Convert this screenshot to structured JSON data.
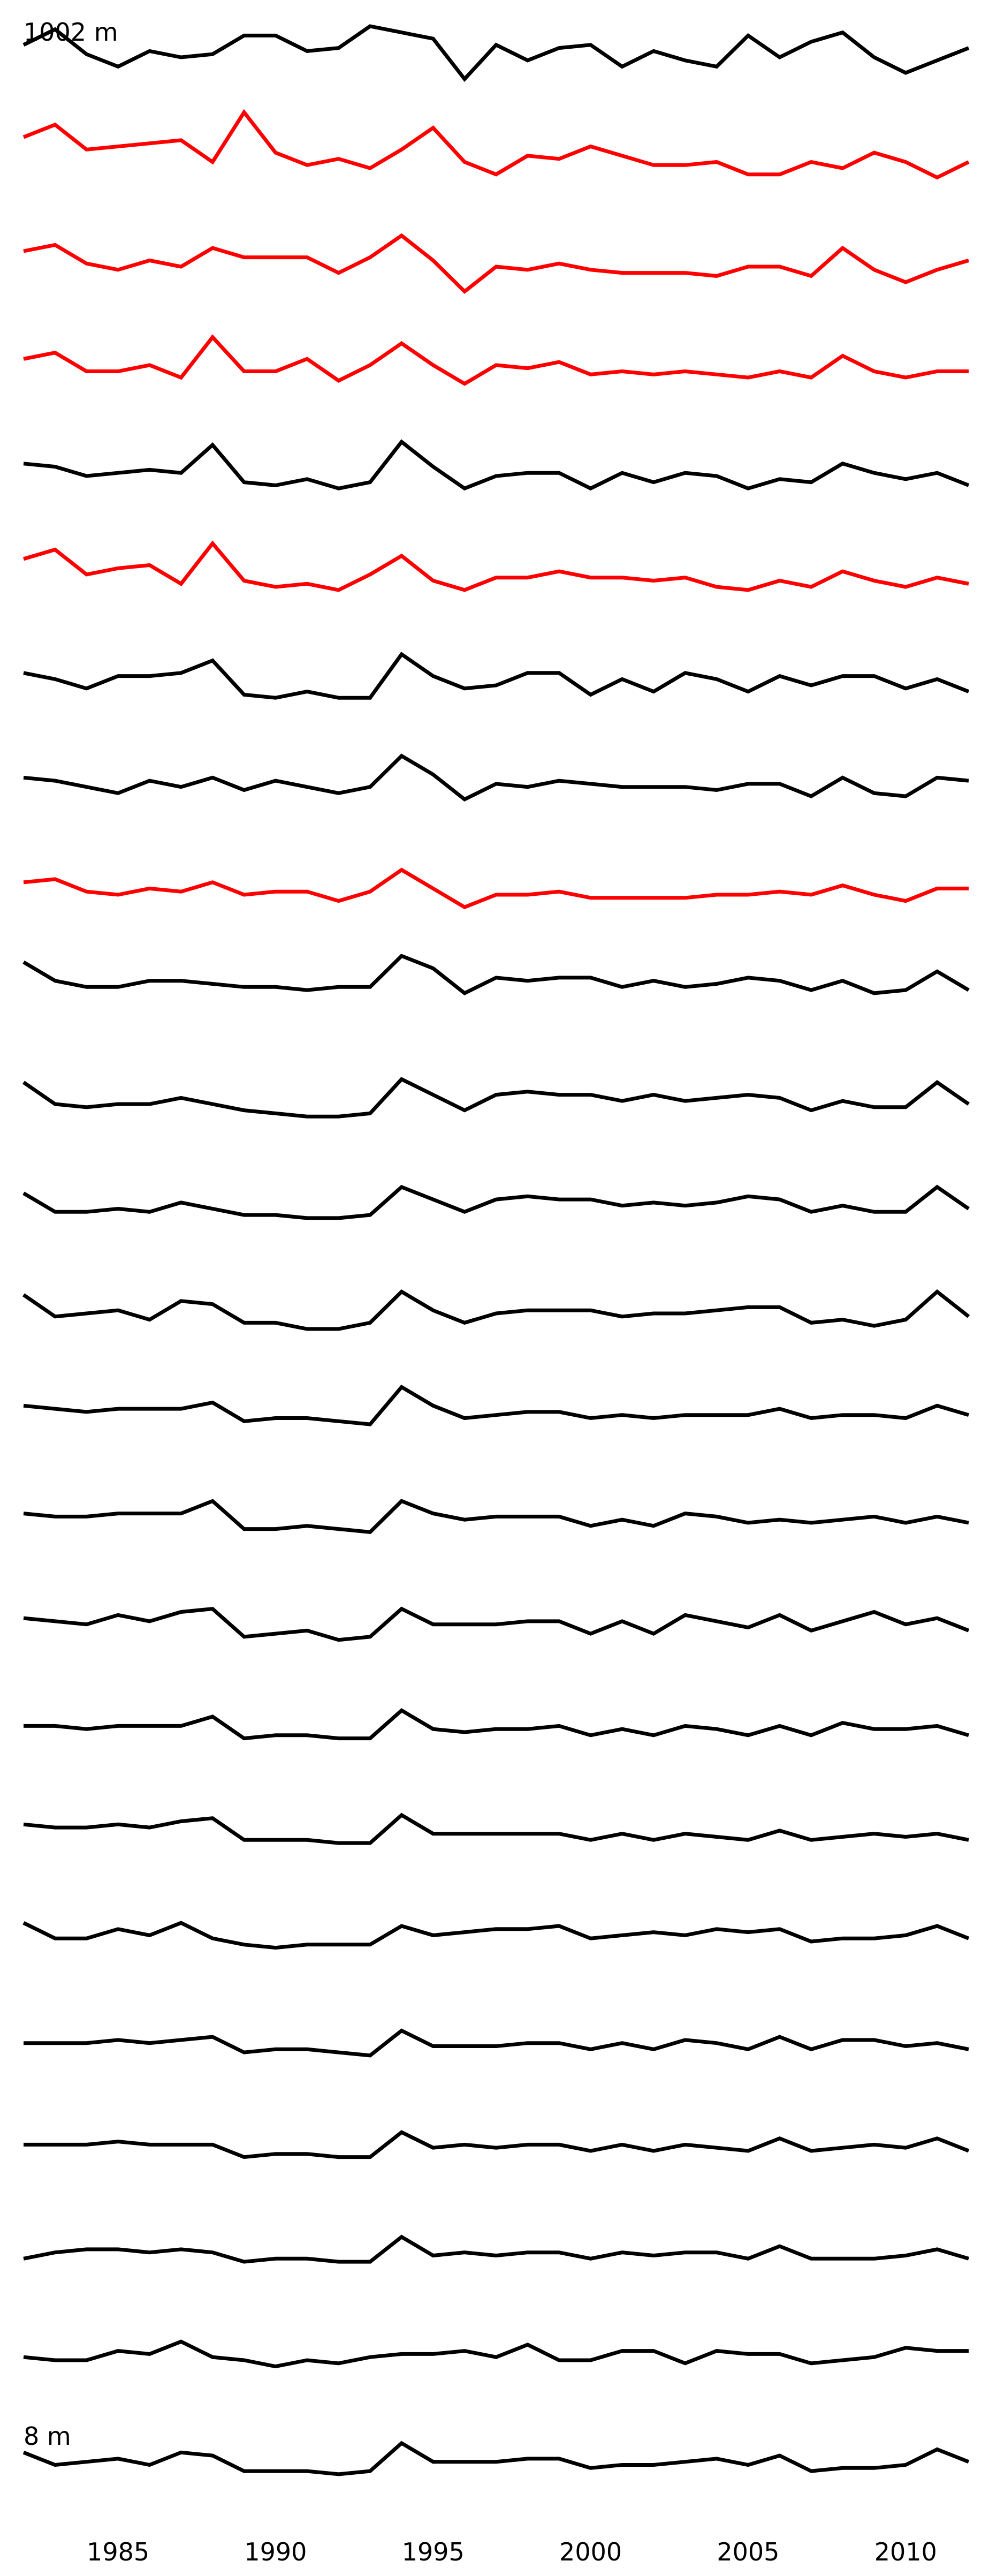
{
  "chart_data": {
    "type": "line",
    "layout": "stacked-small-multiples",
    "grid": false,
    "x_axis_visible": true,
    "y_axes_visible": false,
    "x_ticks": [
      1985,
      1990,
      1995,
      2000,
      2005,
      2010
    ],
    "x_tick_labels": [
      "1985",
      "1990",
      "1995",
      "2000",
      "2005",
      "2010"
    ],
    "xlim": [
      1982,
      2012
    ],
    "top_label": "1002 m",
    "bottom_label": "8 m",
    "colors": {
      "highlight": "#ff0000",
      "default": "#000000"
    },
    "x": [
      1982,
      1983,
      1984,
      1985,
      1986,
      1987,
      1988,
      1989,
      1990,
      1991,
      1992,
      1993,
      1994,
      1995,
      1996,
      1997,
      1998,
      1999,
      2000,
      2001,
      2002,
      2003,
      2004,
      2005,
      2006,
      2007,
      2008,
      2009,
      2010,
      2011,
      2012
    ],
    "series": [
      {
        "color": "black",
        "values": [
          0.9,
          1.4,
          0.6,
          0.2,
          0.7,
          0.5,
          0.6,
          1.2,
          1.2,
          0.7,
          0.8,
          1.5,
          1.3,
          1.1,
          -0.2,
          0.9,
          0.4,
          0.8,
          0.9,
          0.2,
          0.7,
          0.4,
          0.2,
          1.2,
          0.5,
          1.0,
          1.3,
          0.5,
          0.0,
          0.4,
          0.8
        ]
      },
      {
        "color": "red",
        "values": [
          1.3,
          1.7,
          0.9,
          1.0,
          1.1,
          1.2,
          0.5,
          2.1,
          0.8,
          0.4,
          0.6,
          0.3,
          0.9,
          1.6,
          0.5,
          0.1,
          0.7,
          0.6,
          1.0,
          0.7,
          0.4,
          0.4,
          0.5,
          0.1,
          0.1,
          0.5,
          0.3,
          0.8,
          0.5,
          0.0,
          0.5
        ]
      },
      {
        "color": "red",
        "values": [
          1.0,
          1.2,
          0.6,
          0.4,
          0.7,
          0.5,
          1.1,
          0.8,
          0.8,
          0.8,
          0.3,
          0.8,
          1.5,
          0.7,
          -0.3,
          0.5,
          0.4,
          0.6,
          0.4,
          0.3,
          0.3,
          0.3,
          0.2,
          0.5,
          0.5,
          0.2,
          1.1,
          0.4,
          0.0,
          0.4,
          0.7
        ]
      },
      {
        "color": "red",
        "values": [
          0.9,
          1.1,
          0.5,
          0.5,
          0.7,
          0.3,
          1.6,
          0.5,
          0.5,
          0.9,
          0.2,
          0.7,
          1.4,
          0.7,
          0.1,
          0.7,
          0.6,
          0.8,
          0.4,
          0.5,
          0.4,
          0.5,
          0.4,
          0.3,
          0.5,
          0.3,
          1.0,
          0.5,
          0.3,
          0.5,
          0.5
        ]
      },
      {
        "color": "black",
        "values": [
          0.9,
          0.8,
          0.5,
          0.6,
          0.7,
          0.6,
          1.5,
          0.3,
          0.2,
          0.4,
          0.1,
          0.3,
          1.6,
          0.8,
          0.1,
          0.5,
          0.6,
          0.6,
          0.1,
          0.6,
          0.3,
          0.6,
          0.5,
          0.1,
          0.4,
          0.3,
          0.9,
          0.6,
          0.4,
          0.6,
          0.2
        ]
      },
      {
        "color": "red",
        "values": [
          1.2,
          1.5,
          0.7,
          0.9,
          1.0,
          0.4,
          1.7,
          0.5,
          0.3,
          0.4,
          0.2,
          0.7,
          1.3,
          0.5,
          0.2,
          0.6,
          0.6,
          0.8,
          0.6,
          0.6,
          0.5,
          0.6,
          0.3,
          0.2,
          0.5,
          0.3,
          0.8,
          0.5,
          0.3,
          0.6,
          0.4
        ]
      },
      {
        "color": "black",
        "values": [
          0.9,
          0.7,
          0.4,
          0.8,
          0.8,
          0.9,
          1.3,
          0.2,
          0.1,
          0.3,
          0.1,
          0.1,
          1.5,
          0.8,
          0.4,
          0.5,
          0.9,
          0.9,
          0.2,
          0.7,
          0.3,
          0.9,
          0.7,
          0.3,
          0.8,
          0.5,
          0.8,
          0.8,
          0.4,
          0.7,
          0.3
        ]
      },
      {
        "color": "black",
        "values": [
          0.9,
          0.8,
          0.6,
          0.4,
          0.8,
          0.6,
          0.9,
          0.5,
          0.8,
          0.6,
          0.4,
          0.6,
          1.6,
          1.0,
          0.2,
          0.7,
          0.6,
          0.8,
          0.7,
          0.6,
          0.6,
          0.6,
          0.5,
          0.7,
          0.7,
          0.3,
          0.9,
          0.4,
          0.3,
          0.9,
          0.8
        ]
      },
      {
        "color": "red",
        "values": [
          0.9,
          1.0,
          0.6,
          0.5,
          0.7,
          0.6,
          0.9,
          0.5,
          0.6,
          0.6,
          0.3,
          0.6,
          1.3,
          0.7,
          0.1,
          0.5,
          0.5,
          0.6,
          0.4,
          0.4,
          0.4,
          0.4,
          0.5,
          0.5,
          0.6,
          0.5,
          0.8,
          0.5,
          0.3,
          0.7,
          0.7
        ]
      },
      {
        "color": "black",
        "values": [
          1.7,
          1.1,
          0.9,
          0.9,
          1.1,
          1.1,
          1.0,
          0.9,
          0.9,
          0.8,
          0.9,
          0.9,
          1.9,
          1.5,
          0.7,
          1.2,
          1.1,
          1.2,
          1.2,
          0.9,
          1.1,
          0.9,
          1.0,
          1.2,
          1.1,
          0.8,
          1.1,
          0.7,
          0.8,
          1.4,
          0.8
        ]
      },
      {
        "color": "black",
        "values": [
          1.2,
          0.5,
          0.4,
          0.5,
          0.5,
          0.7,
          0.5,
          0.3,
          0.2,
          0.1,
          0.1,
          0.2,
          1.3,
          0.8,
          0.3,
          0.8,
          0.9,
          0.8,
          0.8,
          0.6,
          0.8,
          0.6,
          0.7,
          0.8,
          0.7,
          0.3,
          0.6,
          0.4,
          0.4,
          1.2,
          0.5
        ]
      },
      {
        "color": "black",
        "values": [
          1.0,
          0.4,
          0.4,
          0.5,
          0.4,
          0.7,
          0.5,
          0.3,
          0.3,
          0.2,
          0.2,
          0.3,
          1.2,
          0.8,
          0.4,
          0.8,
          0.9,
          0.8,
          0.8,
          0.6,
          0.7,
          0.6,
          0.7,
          0.9,
          0.8,
          0.4,
          0.6,
          0.4,
          0.4,
          1.2,
          0.5
        ]
      },
      {
        "color": "black",
        "values": [
          1.1,
          0.4,
          0.5,
          0.6,
          0.3,
          0.9,
          0.8,
          0.2,
          0.2,
          0.0,
          0.0,
          0.2,
          1.2,
          0.6,
          0.2,
          0.5,
          0.6,
          0.6,
          0.6,
          0.4,
          0.5,
          0.5,
          0.6,
          0.7,
          0.7,
          0.2,
          0.3,
          0.1,
          0.3,
          1.2,
          0.4
        ]
      },
      {
        "color": "black",
        "values": [
          0.9,
          0.8,
          0.7,
          0.8,
          0.8,
          0.8,
          1.0,
          0.4,
          0.5,
          0.5,
          0.4,
          0.3,
          1.5,
          0.9,
          0.5,
          0.6,
          0.7,
          0.7,
          0.5,
          0.6,
          0.5,
          0.6,
          0.6,
          0.6,
          0.8,
          0.5,
          0.6,
          0.6,
          0.5,
          0.9,
          0.6
        ]
      },
      {
        "color": "black",
        "values": [
          0.8,
          0.7,
          0.7,
          0.8,
          0.8,
          0.8,
          1.2,
          0.3,
          0.3,
          0.4,
          0.3,
          0.2,
          1.2,
          0.8,
          0.6,
          0.7,
          0.7,
          0.7,
          0.4,
          0.6,
          0.4,
          0.8,
          0.7,
          0.5,
          0.6,
          0.5,
          0.6,
          0.7,
          0.5,
          0.7,
          0.5
        ]
      },
      {
        "color": "black",
        "values": [
          0.8,
          0.7,
          0.6,
          0.9,
          0.7,
          1.0,
          1.1,
          0.2,
          0.3,
          0.4,
          0.1,
          0.2,
          1.1,
          0.6,
          0.6,
          0.6,
          0.7,
          0.7,
          0.3,
          0.7,
          0.3,
          0.9,
          0.7,
          0.5,
          0.9,
          0.4,
          0.7,
          1.0,
          0.6,
          0.8,
          0.4
        ]
      },
      {
        "color": "black",
        "values": [
          0.7,
          0.7,
          0.6,
          0.7,
          0.7,
          0.7,
          1.0,
          0.3,
          0.4,
          0.4,
          0.3,
          0.3,
          1.2,
          0.6,
          0.5,
          0.6,
          0.6,
          0.7,
          0.4,
          0.6,
          0.4,
          0.7,
          0.6,
          0.4,
          0.7,
          0.4,
          0.8,
          0.6,
          0.6,
          0.7,
          0.4
        ]
      },
      {
        "color": "black",
        "values": [
          0.9,
          0.8,
          0.8,
          0.9,
          0.8,
          1.0,
          1.1,
          0.4,
          0.4,
          0.4,
          0.3,
          0.3,
          1.2,
          0.6,
          0.6,
          0.6,
          0.6,
          0.6,
          0.4,
          0.6,
          0.4,
          0.6,
          0.5,
          0.4,
          0.7,
          0.4,
          0.5,
          0.6,
          0.5,
          0.6,
          0.4
        ]
      },
      {
        "color": "black",
        "values": [
          1.1,
          0.6,
          0.6,
          0.9,
          0.7,
          1.1,
          0.6,
          0.4,
          0.3,
          0.4,
          0.4,
          0.4,
          1.0,
          0.7,
          0.8,
          0.9,
          0.9,
          1.0,
          0.6,
          0.7,
          0.8,
          0.7,
          0.9,
          0.8,
          0.9,
          0.5,
          0.6,
          0.6,
          0.7,
          1.0,
          0.6
        ]
      },
      {
        "color": "black",
        "values": [
          0.6,
          0.6,
          0.6,
          0.7,
          0.6,
          0.7,
          0.8,
          0.3,
          0.4,
          0.4,
          0.3,
          0.2,
          1.0,
          0.5,
          0.5,
          0.5,
          0.6,
          0.6,
          0.4,
          0.6,
          0.4,
          0.7,
          0.6,
          0.4,
          0.8,
          0.4,
          0.7,
          0.7,
          0.5,
          0.6,
          0.4
        ]
      },
      {
        "color": "black",
        "values": [
          0.7,
          0.7,
          0.7,
          0.8,
          0.7,
          0.7,
          0.7,
          0.3,
          0.4,
          0.4,
          0.3,
          0.3,
          1.1,
          0.6,
          0.7,
          0.6,
          0.7,
          0.7,
          0.5,
          0.7,
          0.5,
          0.7,
          0.6,
          0.5,
          0.9,
          0.5,
          0.6,
          0.7,
          0.6,
          0.9,
          0.5
        ]
      },
      {
        "color": "black",
        "values": [
          0.4,
          0.6,
          0.7,
          0.7,
          0.6,
          0.7,
          0.6,
          0.3,
          0.4,
          0.4,
          0.3,
          0.3,
          1.1,
          0.5,
          0.6,
          0.5,
          0.6,
          0.6,
          0.4,
          0.6,
          0.5,
          0.6,
          0.6,
          0.4,
          0.8,
          0.4,
          0.4,
          0.4,
          0.5,
          0.7,
          0.4
        ]
      },
      {
        "color": "black",
        "values": [
          0.6,
          0.5,
          0.5,
          0.8,
          0.7,
          1.1,
          0.6,
          0.5,
          0.3,
          0.5,
          0.4,
          0.6,
          0.7,
          0.7,
          0.8,
          0.6,
          1.0,
          0.5,
          0.5,
          0.8,
          0.8,
          0.4,
          0.8,
          0.7,
          0.7,
          0.4,
          0.5,
          0.6,
          0.9,
          0.8,
          0.8
        ]
      },
      {
        "color": "black",
        "values": [
          0.9,
          0.5,
          0.6,
          0.7,
          0.5,
          0.9,
          0.8,
          0.3,
          0.3,
          0.3,
          0.2,
          0.3,
          1.2,
          0.6,
          0.6,
          0.6,
          0.7,
          0.7,
          0.4,
          0.5,
          0.5,
          0.6,
          0.7,
          0.5,
          0.8,
          0.3,
          0.4,
          0.4,
          0.5,
          1.0,
          0.6
        ]
      }
    ]
  }
}
